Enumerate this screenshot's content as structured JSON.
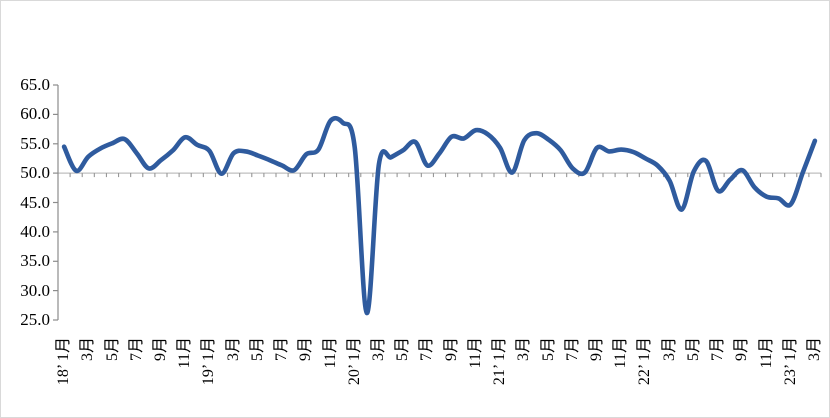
{
  "chart_data": {
    "type": "line",
    "title": "",
    "legend": "none",
    "series_name": "",
    "x_start": "2018-01",
    "x_end": "2023-03",
    "x_tick_labels": [
      "18’ 1月",
      "3月",
      "5月",
      "7月",
      "9月",
      "11月",
      "19’ 1月",
      "3月",
      "5月",
      "7月",
      "9月",
      "11月",
      "20’ 1月",
      "3月",
      "5月",
      "7月",
      "9月",
      "11月",
      "21’ 1月",
      "3月",
      "5月",
      "7月",
      "9月",
      "11月",
      "22’ 1月",
      "3月",
      "5月",
      "7月",
      "9月",
      "11月",
      "23’ 1月",
      "3月"
    ],
    "x_label_every_n_months": 2,
    "values": [
      54.5,
      50.4,
      52.8,
      54.2,
      55.1,
      55.8,
      53.4,
      50.8,
      52.2,
      53.9,
      56.1,
      54.8,
      53.8,
      49.9,
      53.4,
      53.7,
      53.0,
      52.2,
      51.3,
      50.5,
      53.2,
      54.0,
      58.9,
      58.6,
      54.4,
      26.2,
      51.5,
      52.7,
      53.9,
      55.3,
      51.3,
      53.4,
      56.2,
      55.9,
      57.3,
      56.6,
      54.3,
      50.1,
      55.6,
      56.8,
      55.7,
      53.9,
      50.8,
      50.1,
      54.3,
      53.7,
      54.0,
      53.6,
      52.5,
      51.3,
      48.7,
      43.8,
      50.3,
      52.1,
      47.0,
      48.9,
      50.5,
      47.6,
      46.0,
      45.7,
      44.7,
      50.1,
      55.5
    ],
    "ylim": [
      25,
      65
    ],
    "y_tick_step": 5,
    "y_tick_labels": [
      "65.0",
      "60.0",
      "55.0",
      "50.0",
      "45.0",
      "40.0",
      "35.0",
      "30.0",
      "25.0"
    ],
    "x_axis_cross_value": 50,
    "grid": "single horizontal axis line at 50 with monthly tick marks",
    "line_color": "#2f5b9e",
    "axis_color": "#8c8c8c",
    "gridline_50_color": "#bfbfbf",
    "text_color": "#000000",
    "border_color": "#d9d9d9",
    "background_color": "#ffffff"
  }
}
